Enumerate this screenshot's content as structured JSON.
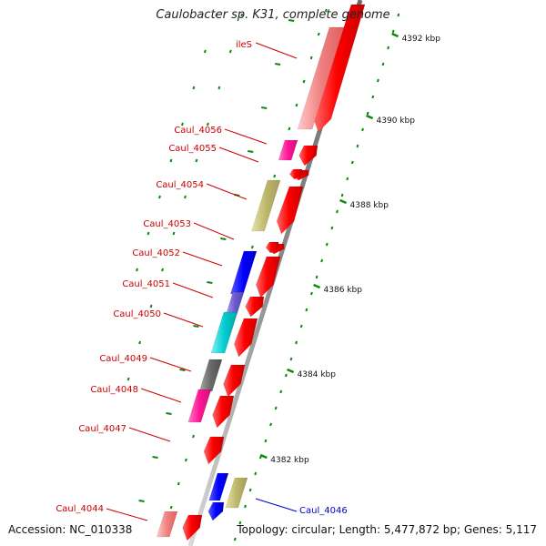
{
  "title": "Caulobacter sp. K31, complete genome",
  "footer": {
    "accession": "Accession: NC_010338",
    "summary": "Topology: circular; Length: 5,477,872 bp; Genes: 5,117"
  },
  "colors": {
    "reverse_label": "#cc0000",
    "forward_label": "#0000cc",
    "cds_red": "#ff0000",
    "tick_green": "#0a8a0a",
    "backbone_gray": "#9a9a9a"
  },
  "kbp_ticks": [
    {
      "label": "4392 kbp"
    },
    {
      "label": "4390 kbp"
    },
    {
      "label": "4388 kbp"
    },
    {
      "label": "4386 kbp"
    },
    {
      "label": "4384 kbp"
    },
    {
      "label": "4382 kbp"
    }
  ],
  "reverse_gene_labels": [
    "ileS",
    "Caul_4056",
    "Caul_4055",
    "Caul_4054",
    "Caul_4053",
    "Caul_4052",
    "Caul_4051",
    "Caul_4050",
    "Caul_4049",
    "Caul_4048",
    "Caul_4047",
    "Caul_4044"
  ],
  "forward_gene_labels": [
    "Caul_4046"
  ],
  "gene_colors": {
    "ileS": "#f08080",
    "Caul_4056": "#ff1493",
    "Caul_4054": "#bdb76b",
    "Caul_4052": "#0000ff",
    "Caul_4051": "#6a5acd",
    "Caul_4050": "#00ced1",
    "Caul_4049": "#696969",
    "Caul_4048": "#ff1493",
    "Caul_4044": "#f08080",
    "Caul_4046": "#0000ff"
  }
}
